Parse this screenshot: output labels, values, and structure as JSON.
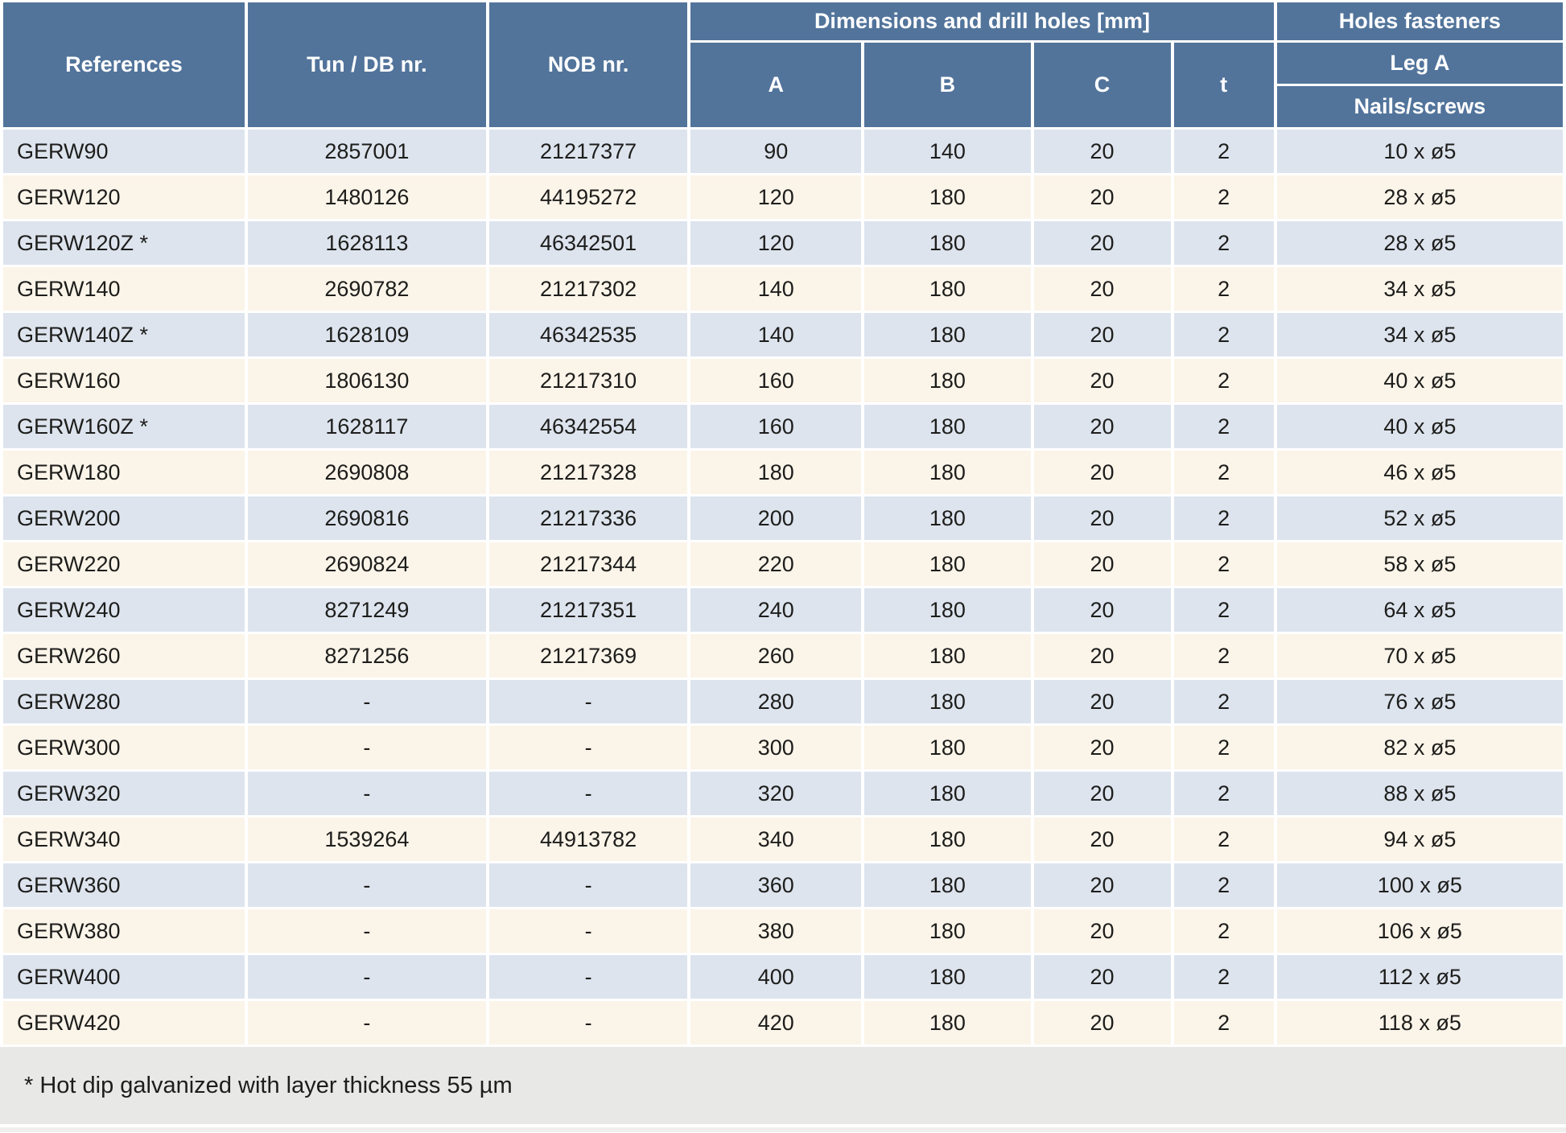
{
  "table": {
    "headers": {
      "references": "References",
      "tun_db": "Tun / DB nr.",
      "nob": "NOB nr.",
      "dimensions_group": "Dimensions and drill holes [mm]",
      "col_a": "A",
      "col_b": "B",
      "col_c": "C",
      "col_t": "t",
      "holes_group": "Holes fasteners",
      "leg_a": "Leg A",
      "nails": "Nails/screws"
    },
    "rows": [
      {
        "reference": "GERW90",
        "tun_db": "2857001",
        "nob": "21217377",
        "a": "90",
        "b": "140",
        "c": "20",
        "t": "2",
        "nails": "10 x ø5"
      },
      {
        "reference": "GERW120",
        "tun_db": "1480126",
        "nob": "44195272",
        "a": "120",
        "b": "180",
        "c": "20",
        "t": "2",
        "nails": "28 x ø5"
      },
      {
        "reference": "GERW120Z *",
        "tun_db": "1628113",
        "nob": "46342501",
        "a": "120",
        "b": "180",
        "c": "20",
        "t": "2",
        "nails": "28 x ø5"
      },
      {
        "reference": "GERW140",
        "tun_db": "2690782",
        "nob": "21217302",
        "a": "140",
        "b": "180",
        "c": "20",
        "t": "2",
        "nails": "34 x ø5"
      },
      {
        "reference": "GERW140Z *",
        "tun_db": "1628109",
        "nob": "46342535",
        "a": "140",
        "b": "180",
        "c": "20",
        "t": "2",
        "nails": "34 x ø5"
      },
      {
        "reference": "GERW160",
        "tun_db": "1806130",
        "nob": "21217310",
        "a": "160",
        "b": "180",
        "c": "20",
        "t": "2",
        "nails": "40 x ø5"
      },
      {
        "reference": "GERW160Z *",
        "tun_db": "1628117",
        "nob": "46342554",
        "a": "160",
        "b": "180",
        "c": "20",
        "t": "2",
        "nails": "40 x ø5"
      },
      {
        "reference": "GERW180",
        "tun_db": "2690808",
        "nob": "21217328",
        "a": "180",
        "b": "180",
        "c": "20",
        "t": "2",
        "nails": "46 x ø5"
      },
      {
        "reference": "GERW200",
        "tun_db": "2690816",
        "nob": "21217336",
        "a": "200",
        "b": "180",
        "c": "20",
        "t": "2",
        "nails": "52 x ø5"
      },
      {
        "reference": "GERW220",
        "tun_db": "2690824",
        "nob": "21217344",
        "a": "220",
        "b": "180",
        "c": "20",
        "t": "2",
        "nails": "58 x ø5"
      },
      {
        "reference": "GERW240",
        "tun_db": "8271249",
        "nob": "21217351",
        "a": "240",
        "b": "180",
        "c": "20",
        "t": "2",
        "nails": "64 x ø5"
      },
      {
        "reference": "GERW260",
        "tun_db": "8271256",
        "nob": "21217369",
        "a": "260",
        "b": "180",
        "c": "20",
        "t": "2",
        "nails": "70 x ø5"
      },
      {
        "reference": "GERW280",
        "tun_db": "-",
        "nob": "-",
        "a": "280",
        "b": "180",
        "c": "20",
        "t": "2",
        "nails": "76 x ø5"
      },
      {
        "reference": "GERW300",
        "tun_db": "-",
        "nob": "-",
        "a": "300",
        "b": "180",
        "c": "20",
        "t": "2",
        "nails": "82 x ø5"
      },
      {
        "reference": "GERW320",
        "tun_db": "-",
        "nob": "-",
        "a": "320",
        "b": "180",
        "c": "20",
        "t": "2",
        "nails": "88 x ø5"
      },
      {
        "reference": "GERW340",
        "tun_db": "1539264",
        "nob": "44913782",
        "a": "340",
        "b": "180",
        "c": "20",
        "t": "2",
        "nails": "94 x ø5"
      },
      {
        "reference": "GERW360",
        "tun_db": "-",
        "nob": "-",
        "a": "360",
        "b": "180",
        "c": "20",
        "t": "2",
        "nails": "100 x ø5"
      },
      {
        "reference": "GERW380",
        "tun_db": "-",
        "nob": "-",
        "a": "380",
        "b": "180",
        "c": "20",
        "t": "2",
        "nails": "106 x ø5"
      },
      {
        "reference": "GERW400",
        "tun_db": "-",
        "nob": "-",
        "a": "400",
        "b": "180",
        "c": "20",
        "t": "2",
        "nails": "112 x ø5"
      },
      {
        "reference": "GERW420",
        "tun_db": "-",
        "nob": "-",
        "a": "420",
        "b": "180",
        "c": "20",
        "t": "2",
        "nails": "118 x ø5"
      }
    ]
  },
  "footnote": "* Hot dip galvanized with layer thickness 55 µm",
  "colors": {
    "header_bg": "#52749b",
    "header_text": "#ffffff",
    "row_odd": "#dde4ee",
    "row_even": "#fbf4e9",
    "footer_bg": "#e8e8e6",
    "strip_bg": "#efefed",
    "text": "#1d1d1b"
  }
}
